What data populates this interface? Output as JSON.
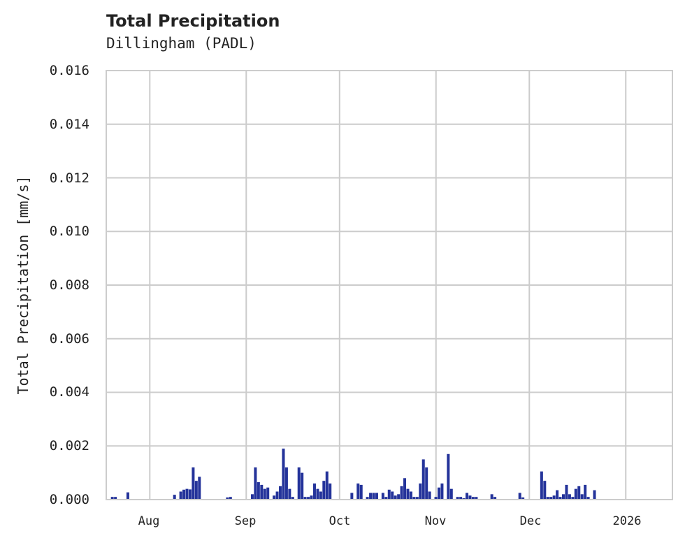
{
  "header": {
    "title": "Total Precipitation",
    "subtitle": "Dillingham (PADL)"
  },
  "axes": {
    "ylabel": "Total Precipitation [mm/s]",
    "yticks": [
      "0.000",
      "0.002",
      "0.004",
      "0.006",
      "0.008",
      "0.010",
      "0.012",
      "0.014",
      "0.016"
    ],
    "xticks": [
      "Aug",
      "Sep",
      "Oct",
      "Nov",
      "Dec",
      "2026"
    ]
  },
  "colors": {
    "bar": "#24339a",
    "grid": "#cccccc",
    "text": "#222222"
  },
  "chart_data": {
    "type": "bar",
    "title": "Total Precipitation",
    "subtitle": "Dillingham (PADL)",
    "xlabel": "",
    "ylabel": "Total Precipitation [mm/s]",
    "ylim": [
      0,
      0.016
    ],
    "xlim": [
      "2025-07-18",
      "2026-01-16"
    ],
    "grid": true,
    "legend": null,
    "x_tick_labels": [
      "Aug",
      "Sep",
      "Oct",
      "Nov",
      "Dec",
      "2026"
    ],
    "y_tick_labels": [
      "0.000",
      "0.002",
      "0.004",
      "0.006",
      "0.008",
      "0.010",
      "0.012",
      "0.014",
      "0.016"
    ],
    "x": [
      "2025-07-20",
      "2025-07-21",
      "2025-07-25",
      "2025-08-09",
      "2025-08-10",
      "2025-08-11",
      "2025-08-12",
      "2025-08-13",
      "2025-08-14",
      "2025-08-15",
      "2025-08-16",
      "2025-08-17",
      "2025-08-26",
      "2025-08-27",
      "2025-09-03",
      "2025-09-04",
      "2025-09-05",
      "2025-09-06",
      "2025-09-07",
      "2025-09-08",
      "2025-09-10",
      "2025-09-11",
      "2025-09-12",
      "2025-09-13",
      "2025-09-14",
      "2025-09-15",
      "2025-09-16",
      "2025-09-18",
      "2025-09-19",
      "2025-09-20",
      "2025-09-21",
      "2025-09-22",
      "2025-09-23",
      "2025-09-24",
      "2025-09-25",
      "2025-09-26",
      "2025-09-27",
      "2025-09-28",
      "2025-10-02",
      "2025-10-05",
      "2025-10-07",
      "2025-10-08",
      "2025-10-10",
      "2025-10-11",
      "2025-10-12",
      "2025-10-13",
      "2025-10-15",
      "2025-10-16",
      "2025-10-17",
      "2025-10-18",
      "2025-10-19",
      "2025-10-20",
      "2025-10-21",
      "2025-10-22",
      "2025-10-23",
      "2025-10-24",
      "2025-10-25",
      "2025-10-26",
      "2025-10-27",
      "2025-10-28",
      "2025-10-29",
      "2025-10-30",
      "2025-11-01",
      "2025-11-02",
      "2025-11-03",
      "2025-11-05",
      "2025-11-06",
      "2025-11-08",
      "2025-11-09",
      "2025-11-10",
      "2025-11-11",
      "2025-11-12",
      "2025-11-13",
      "2025-11-14",
      "2025-11-19",
      "2025-11-20",
      "2025-11-28",
      "2025-11-29",
      "2025-12-05",
      "2025-12-06",
      "2025-12-07",
      "2025-12-08",
      "2025-12-09",
      "2025-12-10",
      "2025-12-11",
      "2025-12-12",
      "2025-12-13",
      "2025-12-14",
      "2025-12-15",
      "2025-12-16",
      "2025-12-17",
      "2025-12-18",
      "2025-12-19",
      "2025-12-20",
      "2025-12-22"
    ],
    "values": [
      0.0001,
      0.0001,
      0.00027,
      0.00018,
      0.0,
      0.0003,
      0.00037,
      0.0004,
      0.00038,
      0.0012,
      0.0007,
      0.00085,
      8e-05,
      0.0001,
      0.0002,
      0.0012,
      0.00065,
      0.00055,
      0.0004,
      0.00045,
      0.00015,
      0.0003,
      0.0005,
      0.0019,
      0.0012,
      0.0004,
      0.0001,
      0.0012,
      0.001,
      0.0001,
      0.0001,
      0.00015,
      0.0006,
      0.0004,
      0.0003,
      0.0007,
      0.00105,
      0.0006,
      0.0,
      0.00025,
      0.0006,
      0.00055,
      0.0001,
      0.00025,
      0.00025,
      0.00025,
      0.00025,
      0.0001,
      0.00037,
      0.0003,
      0.00015,
      0.0002,
      0.0005,
      0.0008,
      0.0004,
      0.0003,
      0.0001,
      0.0001,
      0.0006,
      0.0015,
      0.0012,
      0.0003,
      0.0001,
      0.00045,
      0.0006,
      0.0017,
      0.0004,
      0.0001,
      0.0001,
      5e-05,
      0.00025,
      0.00015,
      0.0001,
      0.0001,
      0.0002,
      0.0001,
      0.00025,
      8e-05,
      0.00105,
      0.0007,
      0.0001,
      0.0001,
      0.00015,
      0.00035,
      0.0001,
      0.0002,
      0.00055,
      0.0002,
      0.0001,
      0.0004,
      0.0005,
      0.0002,
      0.00055,
      0.0001,
      0.00035
    ]
  }
}
